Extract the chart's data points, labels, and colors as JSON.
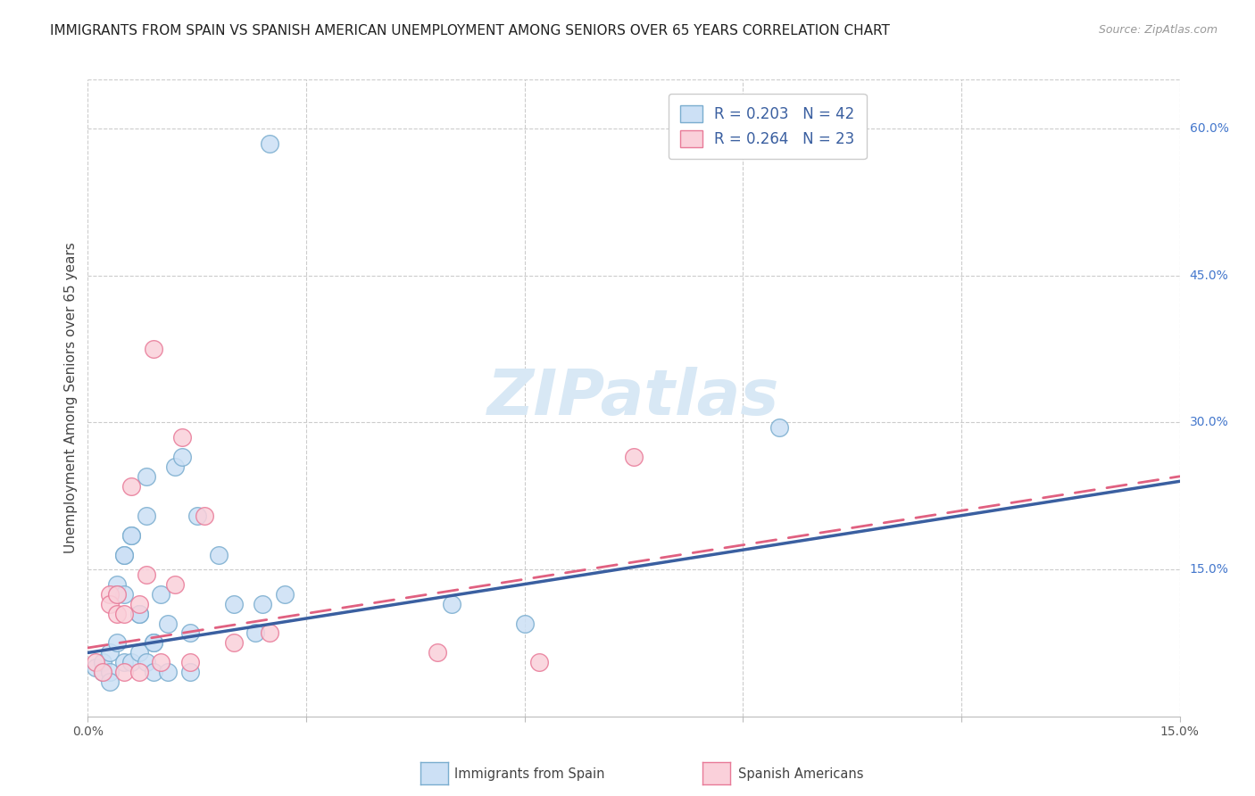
{
  "title": "IMMIGRANTS FROM SPAIN VS SPANISH AMERICAN UNEMPLOYMENT AMONG SENIORS OVER 65 YEARS CORRELATION CHART",
  "source": "Source: ZipAtlas.com",
  "ylabel": "Unemployment Among Seniors over 65 years",
  "xlim": [
    0.0,
    0.15
  ],
  "ylim": [
    0.0,
    0.65
  ],
  "x_ticks": [
    0.0,
    0.03,
    0.06,
    0.09,
    0.12,
    0.15
  ],
  "x_tick_labels": [
    "0.0%",
    "",
    "",
    "",
    "",
    "15.0%"
  ],
  "y_ticks_right": [
    0.15,
    0.3,
    0.45,
    0.6
  ],
  "y_tick_labels_right": [
    "15.0%",
    "30.0%",
    "45.0%",
    "60.0%"
  ],
  "legend_blue_r": "0.203",
  "legend_blue_n": "42",
  "legend_pink_r": "0.264",
  "legend_pink_n": "23",
  "blue_color": "#a8c4e0",
  "pink_color": "#f4a8b8",
  "blue_fill": "#cce0f5",
  "pink_fill": "#fad0da",
  "blue_edge": "#7aadcf",
  "pink_edge": "#e87a98",
  "blue_line_color": "#3a5fa0",
  "pink_line_color": "#e06080",
  "watermark_color": "#d8e8f5",
  "blue_points_x": [
    0.001,
    0.002,
    0.002,
    0.003,
    0.003,
    0.003,
    0.004,
    0.004,
    0.004,
    0.005,
    0.005,
    0.005,
    0.005,
    0.006,
    0.006,
    0.006,
    0.007,
    0.007,
    0.007,
    0.008,
    0.008,
    0.008,
    0.009,
    0.009,
    0.009,
    0.01,
    0.011,
    0.011,
    0.012,
    0.013,
    0.014,
    0.014,
    0.015,
    0.018,
    0.02,
    0.023,
    0.024,
    0.025,
    0.027,
    0.05,
    0.06,
    0.095
  ],
  "blue_points_y": [
    0.05,
    0.045,
    0.055,
    0.065,
    0.045,
    0.035,
    0.075,
    0.135,
    0.125,
    0.125,
    0.165,
    0.165,
    0.055,
    0.185,
    0.185,
    0.055,
    0.105,
    0.105,
    0.065,
    0.245,
    0.205,
    0.055,
    0.075,
    0.075,
    0.045,
    0.125,
    0.095,
    0.045,
    0.255,
    0.265,
    0.085,
    0.045,
    0.205,
    0.165,
    0.115,
    0.085,
    0.115,
    0.585,
    0.125,
    0.115,
    0.095,
    0.295
  ],
  "pink_points_x": [
    0.001,
    0.002,
    0.003,
    0.003,
    0.004,
    0.004,
    0.005,
    0.005,
    0.006,
    0.007,
    0.007,
    0.008,
    0.009,
    0.01,
    0.012,
    0.013,
    0.014,
    0.016,
    0.02,
    0.025,
    0.048,
    0.062,
    0.075
  ],
  "pink_points_y": [
    0.055,
    0.045,
    0.125,
    0.115,
    0.125,
    0.105,
    0.105,
    0.045,
    0.235,
    0.115,
    0.045,
    0.145,
    0.375,
    0.055,
    0.135,
    0.285,
    0.055,
    0.205,
    0.075,
    0.085,
    0.065,
    0.055,
    0.265
  ],
  "blue_trend_x": [
    0.0,
    0.15
  ],
  "blue_trend_y": [
    0.065,
    0.24
  ],
  "pink_trend_x": [
    0.0,
    0.15
  ],
  "pink_trend_y": [
    0.07,
    0.245
  ],
  "grid_color": "#cccccc",
  "bg_color": "#ffffff",
  "title_fontsize": 11,
  "axis_label_fontsize": 11,
  "tick_fontsize": 10,
  "legend_fontsize": 12,
  "watermark_fontsize": 52,
  "source_fontsize": 9,
  "bottom_legend_labels": [
    "Immigrants from Spain",
    "Spanish Americans"
  ]
}
